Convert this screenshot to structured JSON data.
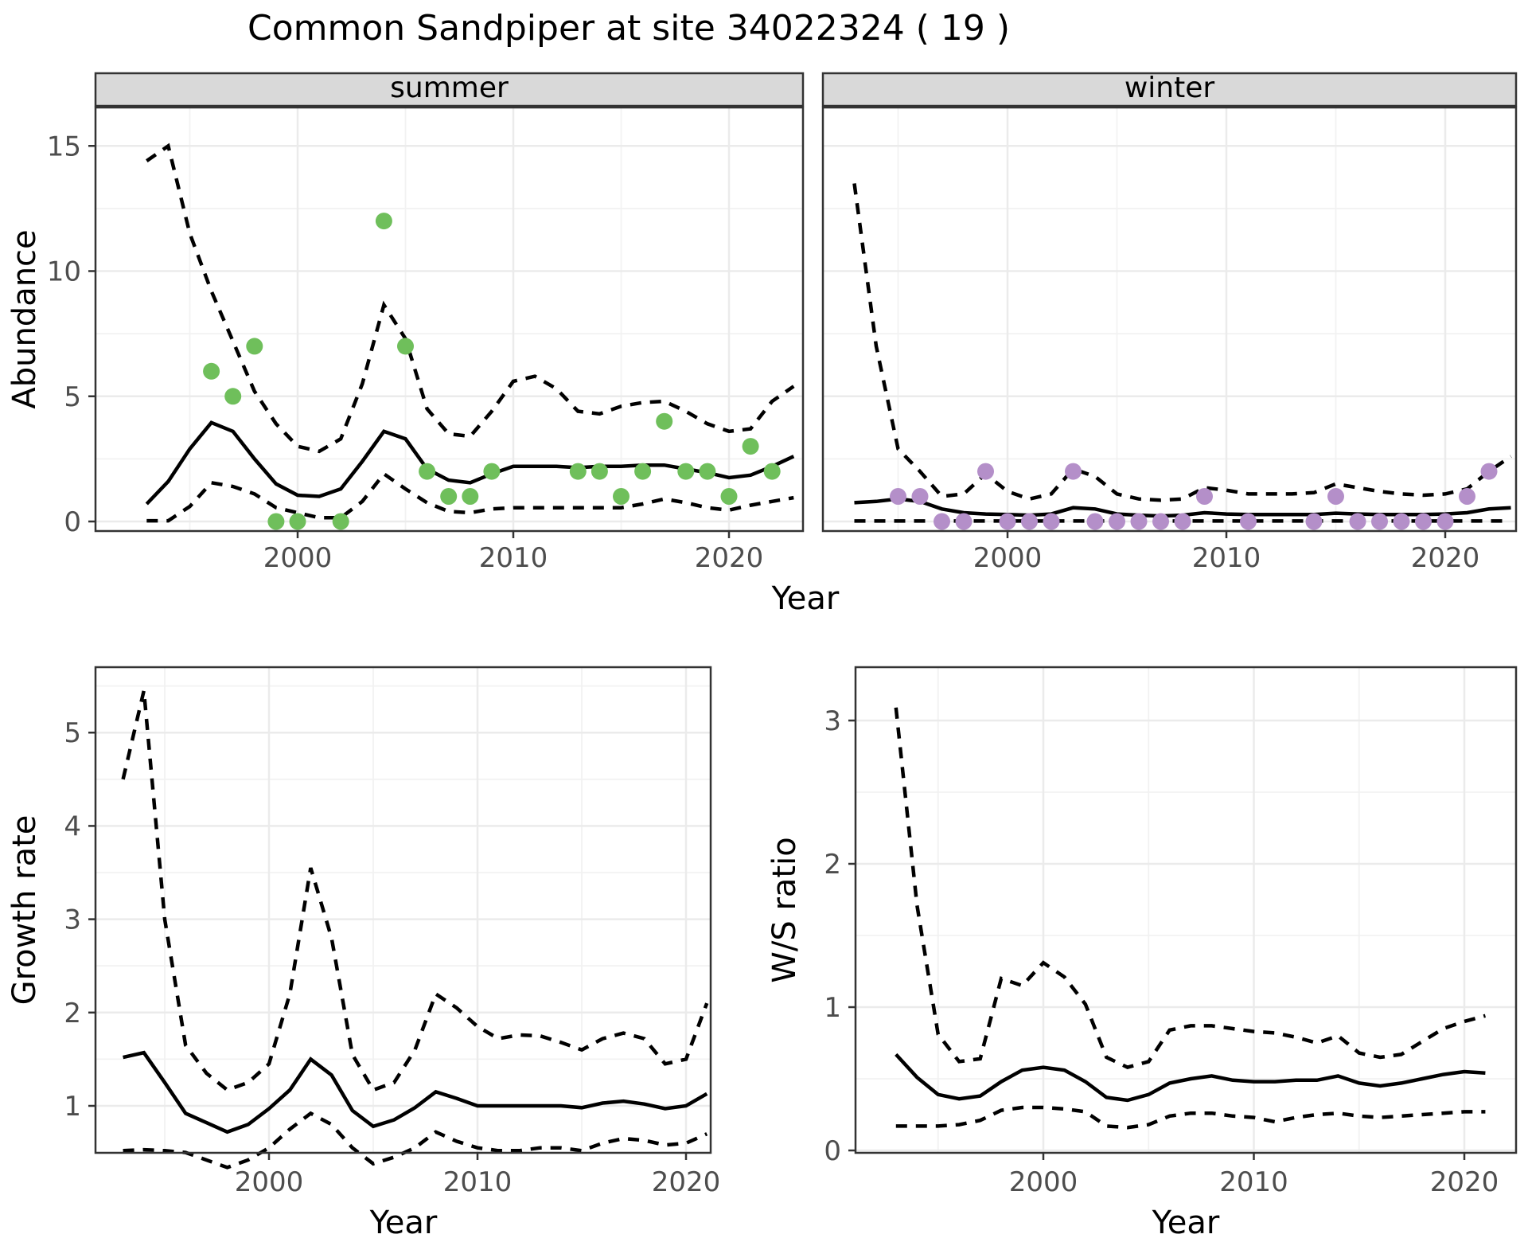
{
  "title": "Common Sandpiper at site 34022324 ( 19 )",
  "axes": {
    "x_label": "Year",
    "abundance_label": "Abundance",
    "growth_label": "Growth rate",
    "ws_label": "W/S ratio"
  },
  "facets": {
    "summer": "summer",
    "winter": "winter"
  },
  "colors": {
    "summer_point": "#6FBF5B",
    "winter_point": "#B48FC9",
    "line": "#000000",
    "grid_major": "#EBEBEB",
    "grid_minor": "#F2F2F2",
    "strip_fill": "#D9D9D9",
    "panel_border": "#333333",
    "tick_text": "#4D4D4D"
  },
  "chart_data": [
    {
      "id": "abundance-summer",
      "type": "line",
      "facet_label": "summer",
      "ylabel": "Abundance",
      "xlabel": "Year",
      "x_ticks": [
        2000,
        2010,
        2020
      ],
      "y_ticks": [
        0,
        5,
        10,
        15
      ],
      "xlim": [
        1990.6,
        2023.4
      ],
      "ylim": [
        -0.4,
        16.5
      ],
      "years": [
        1993,
        1994,
        1995,
        1996,
        1997,
        1998,
        1999,
        2000,
        2001,
        2002,
        2003,
        2004,
        2005,
        2006,
        2007,
        2008,
        2009,
        2010,
        2011,
        2012,
        2013,
        2014,
        2015,
        2016,
        2017,
        2018,
        2019,
        2020,
        2021,
        2022,
        2023
      ],
      "fit": [
        0.7,
        1.6,
        2.9,
        3.95,
        3.6,
        2.5,
        1.5,
        1.05,
        1.0,
        1.3,
        2.4,
        3.6,
        3.3,
        2.1,
        1.65,
        1.55,
        1.9,
        2.2,
        2.2,
        2.2,
        2.15,
        2.2,
        2.2,
        2.25,
        2.25,
        2.1,
        1.95,
        1.75,
        1.85,
        2.2,
        2.6
      ],
      "upper": [
        14.4,
        15.0,
        11.5,
        9.2,
        7.2,
        5.2,
        3.9,
        3.0,
        2.8,
        3.3,
        5.5,
        8.65,
        7.3,
        4.5,
        3.5,
        3.4,
        4.4,
        5.6,
        5.8,
        5.3,
        4.4,
        4.3,
        4.6,
        4.75,
        4.8,
        4.4,
        3.9,
        3.6,
        3.7,
        4.8,
        5.4
      ],
      "lower": [
        0.03,
        0.03,
        0.6,
        1.55,
        1.4,
        1.1,
        0.55,
        0.35,
        0.15,
        0.15,
        0.8,
        1.9,
        1.3,
        0.75,
        0.4,
        0.35,
        0.5,
        0.55,
        0.55,
        0.55,
        0.55,
        0.55,
        0.55,
        0.7,
        0.9,
        0.75,
        0.55,
        0.45,
        0.65,
        0.8,
        0.95
      ],
      "points": [
        [
          1996,
          6
        ],
        [
          1997,
          5
        ],
        [
          1998,
          7
        ],
        [
          1999,
          0
        ],
        [
          2000,
          0
        ],
        [
          2002,
          0
        ],
        [
          2004,
          12
        ],
        [
          2005,
          7
        ],
        [
          2006,
          2
        ],
        [
          2007,
          1
        ],
        [
          2008,
          1
        ],
        [
          2009,
          2
        ],
        [
          2013,
          2
        ],
        [
          2014,
          2
        ],
        [
          2015,
          1
        ],
        [
          2016,
          2
        ],
        [
          2017,
          4
        ],
        [
          2018,
          2
        ],
        [
          2019,
          2
        ],
        [
          2020,
          1
        ],
        [
          2021,
          3
        ],
        [
          2022,
          2
        ]
      ]
    },
    {
      "id": "abundance-winter",
      "type": "line",
      "facet_label": "winter",
      "ylabel": "Abundance",
      "xlabel": "Year",
      "x_ticks": [
        2000,
        2010,
        2020
      ],
      "y_ticks": [
        0,
        5,
        10,
        15
      ],
      "xlim": [
        1990.6,
        2023.4
      ],
      "ylim": [
        -0.4,
        16.5
      ],
      "years": [
        1993,
        1994,
        1995,
        1996,
        1997,
        1998,
        1999,
        2000,
        2001,
        2002,
        2003,
        2004,
        2005,
        2006,
        2007,
        2008,
        2009,
        2010,
        2011,
        2012,
        2013,
        2014,
        2015,
        2016,
        2017,
        2018,
        2019,
        2020,
        2021,
        2022,
        2023
      ],
      "fit": [
        0.75,
        0.8,
        0.9,
        0.8,
        0.5,
        0.35,
        0.3,
        0.28,
        0.25,
        0.3,
        0.55,
        0.5,
        0.3,
        0.25,
        0.22,
        0.25,
        0.35,
        0.3,
        0.28,
        0.28,
        0.28,
        0.28,
        0.33,
        0.3,
        0.28,
        0.28,
        0.28,
        0.3,
        0.35,
        0.5,
        0.55
      ],
      "upper": [
        13.5,
        7.0,
        2.9,
        2.0,
        1.0,
        1.1,
        1.9,
        1.2,
        0.9,
        1.1,
        2.1,
        1.8,
        1.1,
        0.9,
        0.85,
        0.9,
        1.35,
        1.25,
        1.1,
        1.1,
        1.1,
        1.15,
        1.5,
        1.35,
        1.2,
        1.1,
        1.05,
        1.1,
        1.3,
        2.0,
        2.6
      ],
      "lower": [
        0.02,
        0.02,
        0.02,
        0.02,
        0.02,
        0.02,
        0.02,
        0.02,
        0.02,
        0.02,
        0.02,
        0.02,
        0.02,
        0.02,
        0.02,
        0.02,
        0.02,
        0.02,
        0.02,
        0.02,
        0.02,
        0.02,
        0.02,
        0.02,
        0.02,
        0.02,
        0.02,
        0.02,
        0.02,
        0.02,
        0.02
      ],
      "points": [
        [
          1995,
          1
        ],
        [
          1996,
          1
        ],
        [
          1997,
          0
        ],
        [
          1998,
          0
        ],
        [
          1999,
          2
        ],
        [
          2000,
          0
        ],
        [
          2001,
          0
        ],
        [
          2002,
          0
        ],
        [
          2003,
          2
        ],
        [
          2004,
          0
        ],
        [
          2005,
          0
        ],
        [
          2006,
          0
        ],
        [
          2007,
          0
        ],
        [
          2008,
          0
        ],
        [
          2009,
          1
        ],
        [
          2011,
          0
        ],
        [
          2014,
          0
        ],
        [
          2015,
          1
        ],
        [
          2016,
          0
        ],
        [
          2017,
          0
        ],
        [
          2018,
          0
        ],
        [
          2019,
          0
        ],
        [
          2020,
          0
        ],
        [
          2021,
          1
        ],
        [
          2022,
          2
        ]
      ]
    },
    {
      "id": "growth-rate",
      "type": "line",
      "facet_label": "",
      "ylabel": "Growth rate",
      "xlabel": "Year",
      "x_ticks": [
        2000,
        2010,
        2020
      ],
      "y_ticks": [
        1,
        2,
        3,
        4,
        5
      ],
      "xlim": [
        1991.7,
        2021.2
      ],
      "ylim": [
        0.3,
        5.7
      ],
      "years": [
        1993,
        1994,
        1995,
        1996,
        1997,
        1998,
        1999,
        2000,
        2001,
        2002,
        2003,
        2004,
        2005,
        2006,
        2007,
        2008,
        2009,
        2010,
        2011,
        2012,
        2013,
        2014,
        2015,
        2016,
        2017,
        2018,
        2019,
        2020,
        2021
      ],
      "fit": [
        1.52,
        1.57,
        1.25,
        0.92,
        0.82,
        0.72,
        0.8,
        0.97,
        1.17,
        1.5,
        1.33,
        0.95,
        0.78,
        0.85,
        0.98,
        1.15,
        1.08,
        1.0,
        1.0,
        1.0,
        1.0,
        1.0,
        0.98,
        1.03,
        1.05,
        1.02,
        0.97,
        1.0,
        1.13
      ],
      "upper": [
        4.5,
        5.45,
        3.0,
        1.65,
        1.35,
        1.17,
        1.25,
        1.45,
        2.2,
        3.55,
        2.8,
        1.55,
        1.17,
        1.25,
        1.6,
        2.2,
        2.05,
        1.85,
        1.72,
        1.76,
        1.75,
        1.68,
        1.6,
        1.72,
        1.78,
        1.72,
        1.45,
        1.5,
        2.1
      ],
      "lower": [
        0.52,
        0.53,
        0.52,
        0.5,
        0.42,
        0.34,
        0.42,
        0.55,
        0.75,
        0.92,
        0.8,
        0.55,
        0.38,
        0.45,
        0.55,
        0.72,
        0.62,
        0.55,
        0.52,
        0.52,
        0.55,
        0.55,
        0.52,
        0.6,
        0.65,
        0.63,
        0.58,
        0.6,
        0.7
      ],
      "points": []
    },
    {
      "id": "ws-ratio",
      "type": "line",
      "facet_label": "",
      "ylabel": "W/S ratio",
      "xlabel": "Year",
      "x_ticks": [
        2000,
        2010,
        2020
      ],
      "y_ticks": [
        0,
        1,
        2,
        3
      ],
      "xlim": [
        1991.1,
        2022.5
      ],
      "ylim": [
        0,
        3.37
      ],
      "years": [
        1993,
        1994,
        1995,
        1996,
        1997,
        1998,
        1999,
        2000,
        2001,
        2002,
        2003,
        2004,
        2005,
        2006,
        2007,
        2008,
        2009,
        2010,
        2011,
        2012,
        2013,
        2014,
        2015,
        2016,
        2017,
        2018,
        2019,
        2020,
        2021
      ],
      "fit": [
        0.67,
        0.51,
        0.39,
        0.36,
        0.38,
        0.48,
        0.56,
        0.58,
        0.56,
        0.48,
        0.37,
        0.35,
        0.39,
        0.47,
        0.5,
        0.52,
        0.49,
        0.48,
        0.48,
        0.49,
        0.49,
        0.52,
        0.47,
        0.45,
        0.47,
        0.5,
        0.53,
        0.55,
        0.54
      ],
      "upper": [
        3.09,
        1.71,
        0.81,
        0.62,
        0.64,
        1.2,
        1.15,
        1.31,
        1.21,
        1.02,
        0.65,
        0.58,
        0.62,
        0.84,
        0.87,
        0.87,
        0.85,
        0.83,
        0.82,
        0.79,
        0.75,
        0.8,
        0.68,
        0.65,
        0.67,
        0.76,
        0.85,
        0.9,
        0.94
      ],
      "lower": [
        0.17,
        0.17,
        0.17,
        0.18,
        0.21,
        0.28,
        0.3,
        0.3,
        0.29,
        0.27,
        0.17,
        0.16,
        0.18,
        0.24,
        0.26,
        0.26,
        0.24,
        0.23,
        0.2,
        0.23,
        0.25,
        0.26,
        0.24,
        0.23,
        0.24,
        0.25,
        0.26,
        0.27,
        0.27
      ],
      "points": []
    }
  ]
}
